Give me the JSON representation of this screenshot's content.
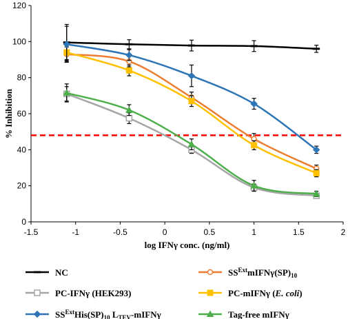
{
  "chart_data": {
    "type": "line",
    "xlabel": "log IFNγ conc. (ng/ml)",
    "ylabel": "% Inhibition",
    "xlim": [
      -1.5,
      2
    ],
    "ylim": [
      0,
      120
    ],
    "x_ticks": [
      "-1.5",
      "-1",
      "-0.5",
      "0",
      "0.5",
      "1",
      "1.5",
      "2"
    ],
    "y_ticks": [
      "0",
      "20",
      "40",
      "60",
      "80",
      "100",
      "120"
    ],
    "grid": false,
    "legend_position": "bottom",
    "reference_line": {
      "y": 48,
      "color": "#ff0000",
      "style": "dashed"
    },
    "x": [
      -1.1,
      -0.4,
      0.3,
      1.0,
      1.7
    ],
    "series": [
      {
        "key": "nc",
        "label_parts": [
          {
            "t": "NC"
          }
        ],
        "color": "#000000",
        "marker": "dash",
        "values": [
          99.5,
          98.5,
          97.8,
          97.5,
          96.0
        ],
        "errors": [
          10,
          2.5,
          3,
          3,
          2
        ]
      },
      {
        "key": "ss_ext_sp10",
        "label_parts": [
          {
            "t": "SS"
          },
          {
            "t": "Ext",
            "sup": true
          },
          {
            "t": "mIFNγ(SP)"
          },
          {
            "t": "10",
            "sub": true
          }
        ],
        "color": "#ed7d31",
        "marker": "circle",
        "values": [
          93.0,
          89.0,
          69.0,
          46.0,
          29.5
        ],
        "errors": [
          4,
          3,
          3,
          3,
          2
        ]
      },
      {
        "key": "pc_hek293",
        "label_parts": [
          {
            "t": "PC-IFNγ (HEK293)"
          }
        ],
        "color": "#a6a6a6",
        "marker": "square-open",
        "values": [
          71.0,
          57.5,
          40.0,
          19.0,
          14.5
        ],
        "errors": [
          4,
          3,
          2,
          2,
          1.5
        ]
      },
      {
        "key": "pc_ecoli",
        "label_parts": [
          {
            "t": "PC-mIFNγ ("
          },
          {
            "t": "E. coli",
            "italic": true
          },
          {
            "t": ")"
          }
        ],
        "color": "#ffc000",
        "marker": "square",
        "values": [
          94.0,
          84.0,
          67.0,
          42.5,
          27.0
        ],
        "errors": [
          4,
          3,
          3,
          2.5,
          2
        ]
      },
      {
        "key": "ss_ext_his",
        "label_parts": [
          {
            "t": "SS"
          },
          {
            "t": "Ext",
            "sup": true
          },
          {
            "t": "His(SP)"
          },
          {
            "t": "10",
            "sub": true
          },
          {
            "t": " L"
          },
          {
            "t": "TEV",
            "sub": true
          },
          {
            "t": "-mIFNγ"
          }
        ],
        "color": "#2e75b6",
        "marker": "diamond",
        "values": [
          98.5,
          92.5,
          81.0,
          65.5,
          40.0
        ],
        "errors": [
          10,
          3,
          6,
          3,
          2
        ]
      },
      {
        "key": "tag_free",
        "label_parts": [
          {
            "t": "Tag-free mIFNγ"
          }
        ],
        "color": "#4daf4a",
        "marker": "triangle",
        "values": [
          71.5,
          62.0,
          43.0,
          20.0,
          15.5
        ],
        "errors": [
          5,
          3,
          3,
          3,
          1.5
        ]
      }
    ]
  }
}
